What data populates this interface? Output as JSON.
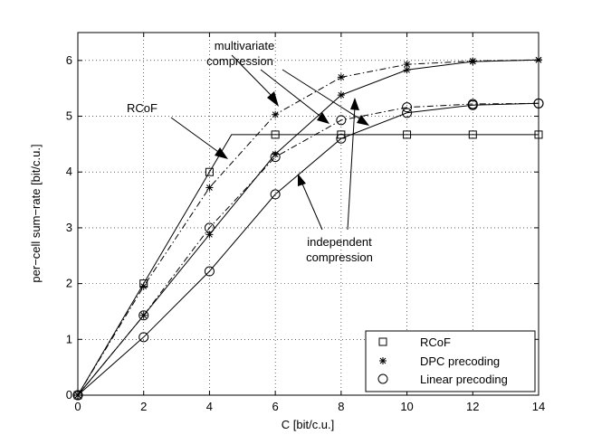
{
  "chart_data": {
    "type": "line",
    "title": "",
    "xlabel": "C [bit/c.u.]",
    "ylabel": "per−cell sum−rate [bit/c.u.]",
    "xlim": [
      0,
      14
    ],
    "ylim": [
      0,
      6.5
    ],
    "xticks": [
      0,
      2,
      4,
      6,
      8,
      10,
      12,
      14
    ],
    "yticks": [
      0,
      1,
      2,
      3,
      4,
      5,
      6
    ],
    "grid": true,
    "legend_position": "bottom-right",
    "series": [
      {
        "name": "RCoF",
        "marker": "square",
        "style": "solid",
        "in_legend": true,
        "x": [
          0,
          2,
          4,
          4.67,
          6,
          8,
          10,
          12,
          14
        ],
        "y": [
          0,
          2.0,
          4.0,
          4.67,
          4.67,
          4.67,
          4.67,
          4.67,
          4.67
        ]
      },
      {
        "name": "DPC precoding",
        "group": "multivariate compression",
        "marker": "star",
        "style": "dashdot",
        "in_legend": true,
        "x": [
          0,
          2,
          4,
          6,
          8,
          10,
          12,
          14
        ],
        "y": [
          0,
          1.95,
          3.72,
          5.03,
          5.7,
          5.93,
          5.99,
          6.01
        ]
      },
      {
        "name": "DPC precoding",
        "group": "independent compression",
        "marker": "star",
        "style": "solid",
        "in_legend": false,
        "x": [
          0,
          2,
          4,
          6,
          8,
          10,
          12,
          14
        ],
        "y": [
          0,
          1.43,
          2.88,
          4.32,
          5.38,
          5.83,
          5.98,
          6.01
        ]
      },
      {
        "name": "Linear precoding",
        "group": "multivariate compression",
        "marker": "circle",
        "style": "dashdot",
        "in_legend": true,
        "x": [
          0,
          2,
          4,
          6,
          8,
          10,
          12,
          14
        ],
        "y": [
          0,
          1.43,
          3.0,
          4.27,
          4.93,
          5.16,
          5.22,
          5.23
        ]
      },
      {
        "name": "Linear precoding",
        "group": "independent compression",
        "marker": "circle",
        "style": "solid",
        "in_legend": false,
        "x": [
          0,
          2,
          4,
          6,
          8,
          10,
          12,
          14
        ],
        "y": [
          0,
          1.04,
          2.22,
          3.6,
          4.6,
          5.06,
          5.2,
          5.23
        ]
      }
    ],
    "annotations": {
      "rcof": "RCoF",
      "multivariate_line1": "multivariate",
      "multivariate_line2": "compression",
      "independent_line1": "independent",
      "independent_line2": "compression"
    },
    "legend": [
      {
        "label": "RCoF",
        "marker": "square"
      },
      {
        "label": "DPC precoding",
        "marker": "star"
      },
      {
        "label": "Linear precoding",
        "marker": "circle"
      }
    ]
  }
}
